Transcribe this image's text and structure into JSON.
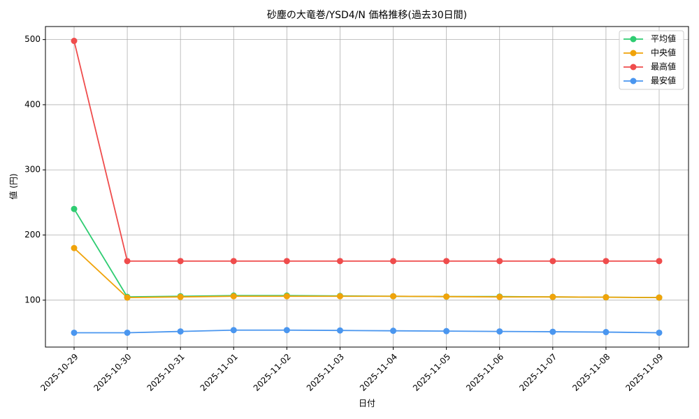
{
  "chart_data": {
    "type": "line",
    "title": "砂塵の大竜巻/YSD4/N 価格推移(過去30日間)",
    "x_label": "日付",
    "y_label": "値 (円)",
    "categories": [
      "2025-10-29",
      "2025-10-30",
      "2025-10-31",
      "2025-11-01",
      "2025-11-02",
      "2025-11-03",
      "2025-11-04",
      "2025-11-05",
      "2025-11-06",
      "2025-11-07",
      "2025-11-08",
      "2025-11-09"
    ],
    "series": [
      {
        "name": "平均値",
        "color": "#2ecc71",
        "values": [
          240,
          105,
          106,
          107,
          107,
          106.5,
          106,
          105.5,
          105.5,
          105,
          104.5,
          104
        ]
      },
      {
        "name": "中央値",
        "color": "#f0a30a",
        "values": [
          180,
          104,
          105,
          106,
          106,
          106,
          106,
          105.5,
          105,
          105,
          104.5,
          104
        ]
      },
      {
        "name": "最高値",
        "color": "#ef4c4c",
        "values": [
          498,
          160,
          160,
          160,
          160,
          160,
          160,
          160,
          160,
          160,
          160,
          160
        ]
      },
      {
        "name": "最安値",
        "color": "#4a96ef",
        "values": [
          50,
          50,
          52,
          54,
          54,
          53.5,
          53,
          52.5,
          52,
          51.5,
          51,
          50
        ]
      }
    ],
    "ylim": [
      28,
      520
    ],
    "yticks": [
      100,
      200,
      300,
      400,
      500
    ],
    "grid": true,
    "legend": "upper right"
  }
}
